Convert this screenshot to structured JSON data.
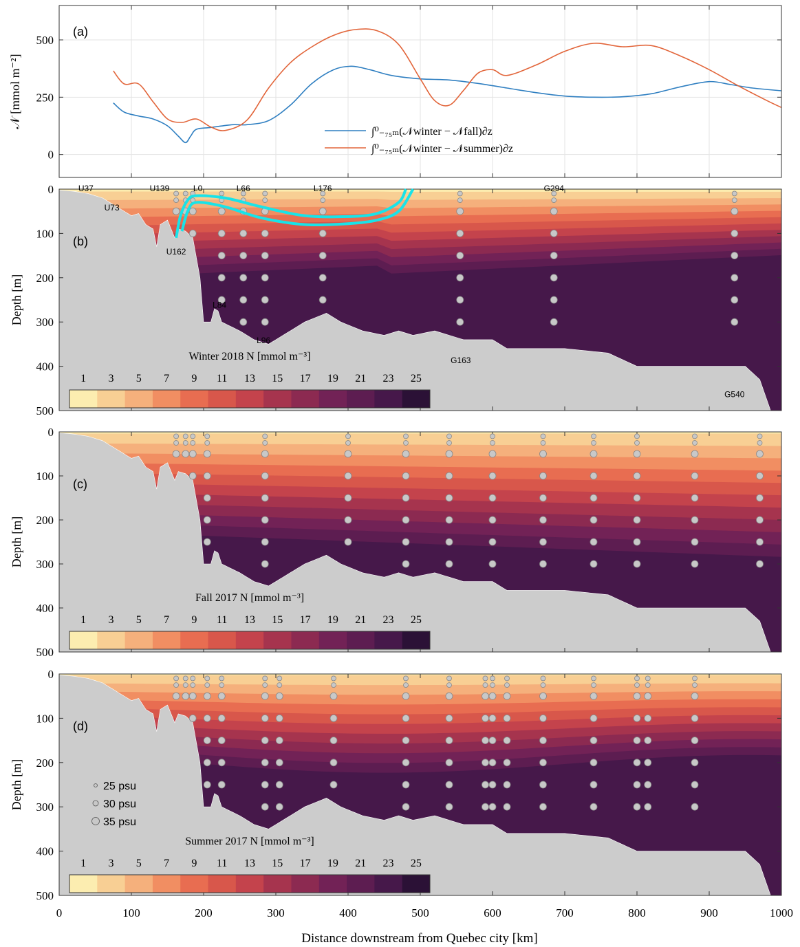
{
  "figure": {
    "xlabel": "Distance downstream from Quebec city [km]",
    "x_ticks": [
      0,
      100,
      200,
      300,
      400,
      500,
      600,
      700,
      800,
      900,
      1000
    ]
  },
  "chart_data": [
    {
      "panel": "(a)",
      "type": "line",
      "ylabel": "𝒩 [mmol m⁻²]",
      "xlim": [
        0,
        1000
      ],
      "ylim": [
        -100,
        650
      ],
      "y_ticks": [
        0,
        250,
        500
      ],
      "grid": true,
      "legend_placement": "bottom-center",
      "series": [
        {
          "name": "∫⁰₋₇₅ₘ(𝒩winter − 𝒩fall)∂z",
          "color": "#2f7fc1",
          "x": [
            75,
            90,
            110,
            130,
            150,
            165,
            175,
            182,
            190,
            210,
            240,
            260,
            290,
            320,
            350,
            380,
            405,
            430,
            460,
            500,
            540,
            580,
            620,
            660,
            700,
            740,
            780,
            820,
            860,
            900,
            930,
            960,
            1000
          ],
          "y": [
            225,
            185,
            168,
            155,
            125,
            80,
            52,
            80,
            110,
            118,
            130,
            130,
            148,
            215,
            310,
            370,
            385,
            370,
            345,
            330,
            325,
            310,
            290,
            270,
            255,
            250,
            252,
            265,
            295,
            318,
            305,
            290,
            278
          ]
        },
        {
          "name": "∫⁰₋₇₅ₘ(𝒩winter − 𝒩summer)∂z",
          "color": "#e2653a",
          "x": [
            75,
            90,
            110,
            130,
            150,
            170,
            190,
            210,
            230,
            260,
            290,
            320,
            350,
            380,
            410,
            440,
            470,
            500,
            520,
            540,
            560,
            580,
            600,
            620,
            660,
            700,
            740,
            780,
            820,
            860,
            900,
            940,
            980,
            1000
          ],
          "y": [
            365,
            308,
            308,
            230,
            155,
            140,
            155,
            120,
            105,
            150,
            290,
            400,
            470,
            520,
            545,
            540,
            480,
            330,
            235,
            215,
            280,
            355,
            370,
            345,
            390,
            450,
            485,
            470,
            475,
            430,
            370,
            300,
            235,
            205
          ]
        }
      ]
    },
    {
      "panel": "(b)",
      "type": "heatmap",
      "ylabel": "Depth [m]",
      "xlim": [
        0,
        1000
      ],
      "ylim": [
        500,
        0
      ],
      "y_ticks": [
        0,
        100,
        200,
        300,
        400,
        500
      ],
      "colorbar_title": "Winter 2018 N [mmol m⁻³]",
      "colorbar_ticks": [
        1,
        3,
        5,
        7,
        9,
        11,
        13,
        15,
        17,
        19,
        21,
        23,
        25
      ],
      "station_labels": [
        {
          "text": "U37",
          "x": 37,
          "y": -3
        },
        {
          "text": "U139",
          "x": 139,
          "y": -3
        },
        {
          "text": "L0",
          "x": 192,
          "y": -3
        },
        {
          "text": "L66",
          "x": 255,
          "y": -3
        },
        {
          "text": "L176",
          "x": 365,
          "y": -3
        },
        {
          "text": "G294",
          "x": 685,
          "y": -3
        },
        {
          "text": "U73",
          "x": 73,
          "y": 40
        },
        {
          "text": "U162",
          "x": 162,
          "y": 140
        },
        {
          "text": "L84",
          "x": 222,
          "y": 260
        },
        {
          "text": "L96",
          "x": 283,
          "y": 340
        },
        {
          "text": "G163",
          "x": 556,
          "y": 385
        },
        {
          "text": "G540",
          "x": 935,
          "y": 462
        }
      ]
    },
    {
      "panel": "(c)",
      "type": "heatmap",
      "ylabel": "Depth [m]",
      "xlim": [
        0,
        1000
      ],
      "ylim": [
        500,
        0
      ],
      "y_ticks": [
        0,
        100,
        200,
        300,
        400,
        500
      ],
      "colorbar_title": "Fall 2017 N [mmol m⁻³]",
      "colorbar_ticks": [
        1,
        3,
        5,
        7,
        9,
        11,
        13,
        15,
        17,
        19,
        21,
        23,
        25
      ]
    },
    {
      "panel": "(d)",
      "type": "heatmap",
      "ylabel": "Depth [m]",
      "xlim": [
        0,
        1000
      ],
      "ylim": [
        500,
        0
      ],
      "y_ticks": [
        0,
        100,
        200,
        300,
        400,
        500
      ],
      "colorbar_title": "Summer 2017 N [mmol m⁻³]",
      "colorbar_ticks": [
        1,
        3,
        5,
        7,
        9,
        11,
        13,
        15,
        17,
        19,
        21,
        23,
        25
      ],
      "size_legend": [
        "25 psu",
        "30 psu",
        "35 psu"
      ]
    }
  ],
  "colors": {
    "palette": [
      "#fcedb0",
      "#f8cf94",
      "#f5b07c",
      "#f18e62",
      "#e86d51",
      "#d8574b",
      "#c4434c",
      "#a6344e",
      "#8c2a51",
      "#722256",
      "#5d1d51",
      "#46184a",
      "#2b1136"
    ],
    "terrain": "#cccccc",
    "station": "#c8c8c8",
    "cyan": "#19e3e8"
  }
}
